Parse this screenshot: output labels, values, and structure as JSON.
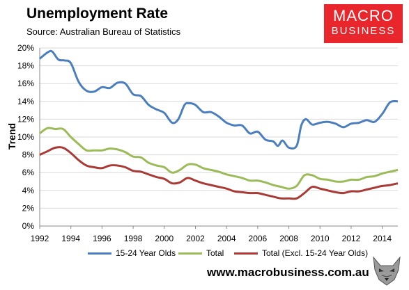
{
  "header": {
    "title": "Unemployment Rate",
    "subtitle": "Source: Australian Bureau of Statistics"
  },
  "logo": {
    "line1": "MACRO",
    "line2": "BUSINESS"
  },
  "footer": {
    "url": "www.macrobusiness.com.au"
  },
  "colors": {
    "youth": "#4a7ebf",
    "total": "#9bbb59",
    "excl": "#a93a35",
    "logo_bg": "#e8262b"
  },
  "chart_data": {
    "type": "line",
    "title": "Unemployment Rate",
    "ylabel": "Trend",
    "xlabel": "",
    "xlim": [
      1992,
      2015
    ],
    "ylim": [
      0,
      20
    ],
    "grid": true,
    "legend": "bottom",
    "x_ticks": [
      "1992",
      "1994",
      "1996",
      "1998",
      "2000",
      "2002",
      "2004",
      "2006",
      "2008",
      "2010",
      "2012",
      "2014"
    ],
    "y_ticks": [
      "0%",
      "2%",
      "4%",
      "6%",
      "8%",
      "10%",
      "12%",
      "14%",
      "16%",
      "18%",
      "20%"
    ],
    "series": [
      {
        "name": "15-24 Year Olds",
        "color": "#4a7ebf",
        "x": [
          1992,
          1992.5,
          1992.8,
          1993.2,
          1993.6,
          1994,
          1994.5,
          1995,
          1995.5,
          1996,
          1996.5,
          1997,
          1997.5,
          1998,
          1998.5,
          1999,
          1999.5,
          2000,
          2000.5,
          2000.9,
          2001.3,
          2001.6,
          2002,
          2002.5,
          2003,
          2003.5,
          2004,
          2004.5,
          2005,
          2005.5,
          2006,
          2006.5,
          2007,
          2007.3,
          2007.6,
          2008,
          2008.5,
          2008.8,
          2009.1,
          2009.5,
          2010,
          2010.5,
          2011,
          2011.5,
          2012,
          2012.5,
          2013,
          2013.5,
          2014,
          2014.5,
          2015
        ],
        "y": [
          18.8,
          19.5,
          19.6,
          18.7,
          18.6,
          18.3,
          16.2,
          15.2,
          15.1,
          15.6,
          15.5,
          16.1,
          16.0,
          14.8,
          14.6,
          13.6,
          13.1,
          12.7,
          11.6,
          12.0,
          13.6,
          13.8,
          13.6,
          12.8,
          12.8,
          12.3,
          11.6,
          11.3,
          11.3,
          10.4,
          10.6,
          9.7,
          9.5,
          9.0,
          9.6,
          8.8,
          9.0,
          11.3,
          12.0,
          11.4,
          11.6,
          11.7,
          11.5,
          11.1,
          11.5,
          11.6,
          11.9,
          11.7,
          12.6,
          13.9,
          14.0
        ]
      },
      {
        "name": "Total",
        "color": "#9bbb59",
        "x": [
          1992,
          1992.5,
          1993,
          1993.5,
          1994,
          1994.5,
          1995,
          1995.5,
          1996,
          1996.5,
          1997,
          1997.5,
          1998,
          1998.5,
          1999,
          1999.5,
          2000,
          2000.5,
          2001,
          2001.5,
          2002,
          2002.5,
          2003,
          2003.5,
          2004,
          2004.5,
          2005,
          2005.5,
          2006,
          2006.5,
          2007,
          2007.5,
          2008,
          2008.5,
          2009,
          2009.5,
          2010,
          2010.5,
          2011,
          2011.5,
          2012,
          2012.5,
          2013,
          2013.5,
          2014,
          2014.5,
          2015
        ],
        "y": [
          10.4,
          11.0,
          10.9,
          10.9,
          10.0,
          9.2,
          8.5,
          8.5,
          8.5,
          8.7,
          8.6,
          8.3,
          7.8,
          7.7,
          7.1,
          6.8,
          6.6,
          6.0,
          6.3,
          6.9,
          6.9,
          6.5,
          6.3,
          6.1,
          5.8,
          5.6,
          5.4,
          5.1,
          5.1,
          4.9,
          4.6,
          4.4,
          4.2,
          4.5,
          5.7,
          5.7,
          5.3,
          5.2,
          5.0,
          5.0,
          5.2,
          5.2,
          5.5,
          5.6,
          5.9,
          6.1,
          6.3
        ]
      },
      {
        "name": "Total (Excl. 15-24 Year Olds)",
        "color": "#a93a35",
        "x": [
          1992,
          1992.5,
          1993,
          1993.5,
          1994,
          1994.5,
          1995,
          1995.5,
          1996,
          1996.5,
          1997,
          1997.5,
          1998,
          1998.5,
          1999,
          1999.5,
          2000,
          2000.5,
          2001,
          2001.5,
          2002,
          2002.5,
          2003,
          2003.5,
          2004,
          2004.5,
          2005,
          2005.5,
          2006,
          2006.5,
          2007,
          2007.5,
          2008,
          2008.5,
          2009,
          2009.5,
          2010,
          2010.5,
          2011,
          2011.5,
          2012,
          2012.5,
          2013,
          2013.5,
          2014,
          2014.5,
          2015
        ],
        "y": [
          8.0,
          8.4,
          8.8,
          8.8,
          8.2,
          7.4,
          6.8,
          6.6,
          6.5,
          6.8,
          6.8,
          6.6,
          6.2,
          6.1,
          5.8,
          5.5,
          5.3,
          4.8,
          4.9,
          5.4,
          5.1,
          4.8,
          4.6,
          4.4,
          4.2,
          3.9,
          3.8,
          3.7,
          3.7,
          3.5,
          3.3,
          3.1,
          3.1,
          3.1,
          3.7,
          4.4,
          4.2,
          4.0,
          3.8,
          3.7,
          3.9,
          3.9,
          4.1,
          4.3,
          4.5,
          4.6,
          4.8
        ]
      }
    ]
  }
}
